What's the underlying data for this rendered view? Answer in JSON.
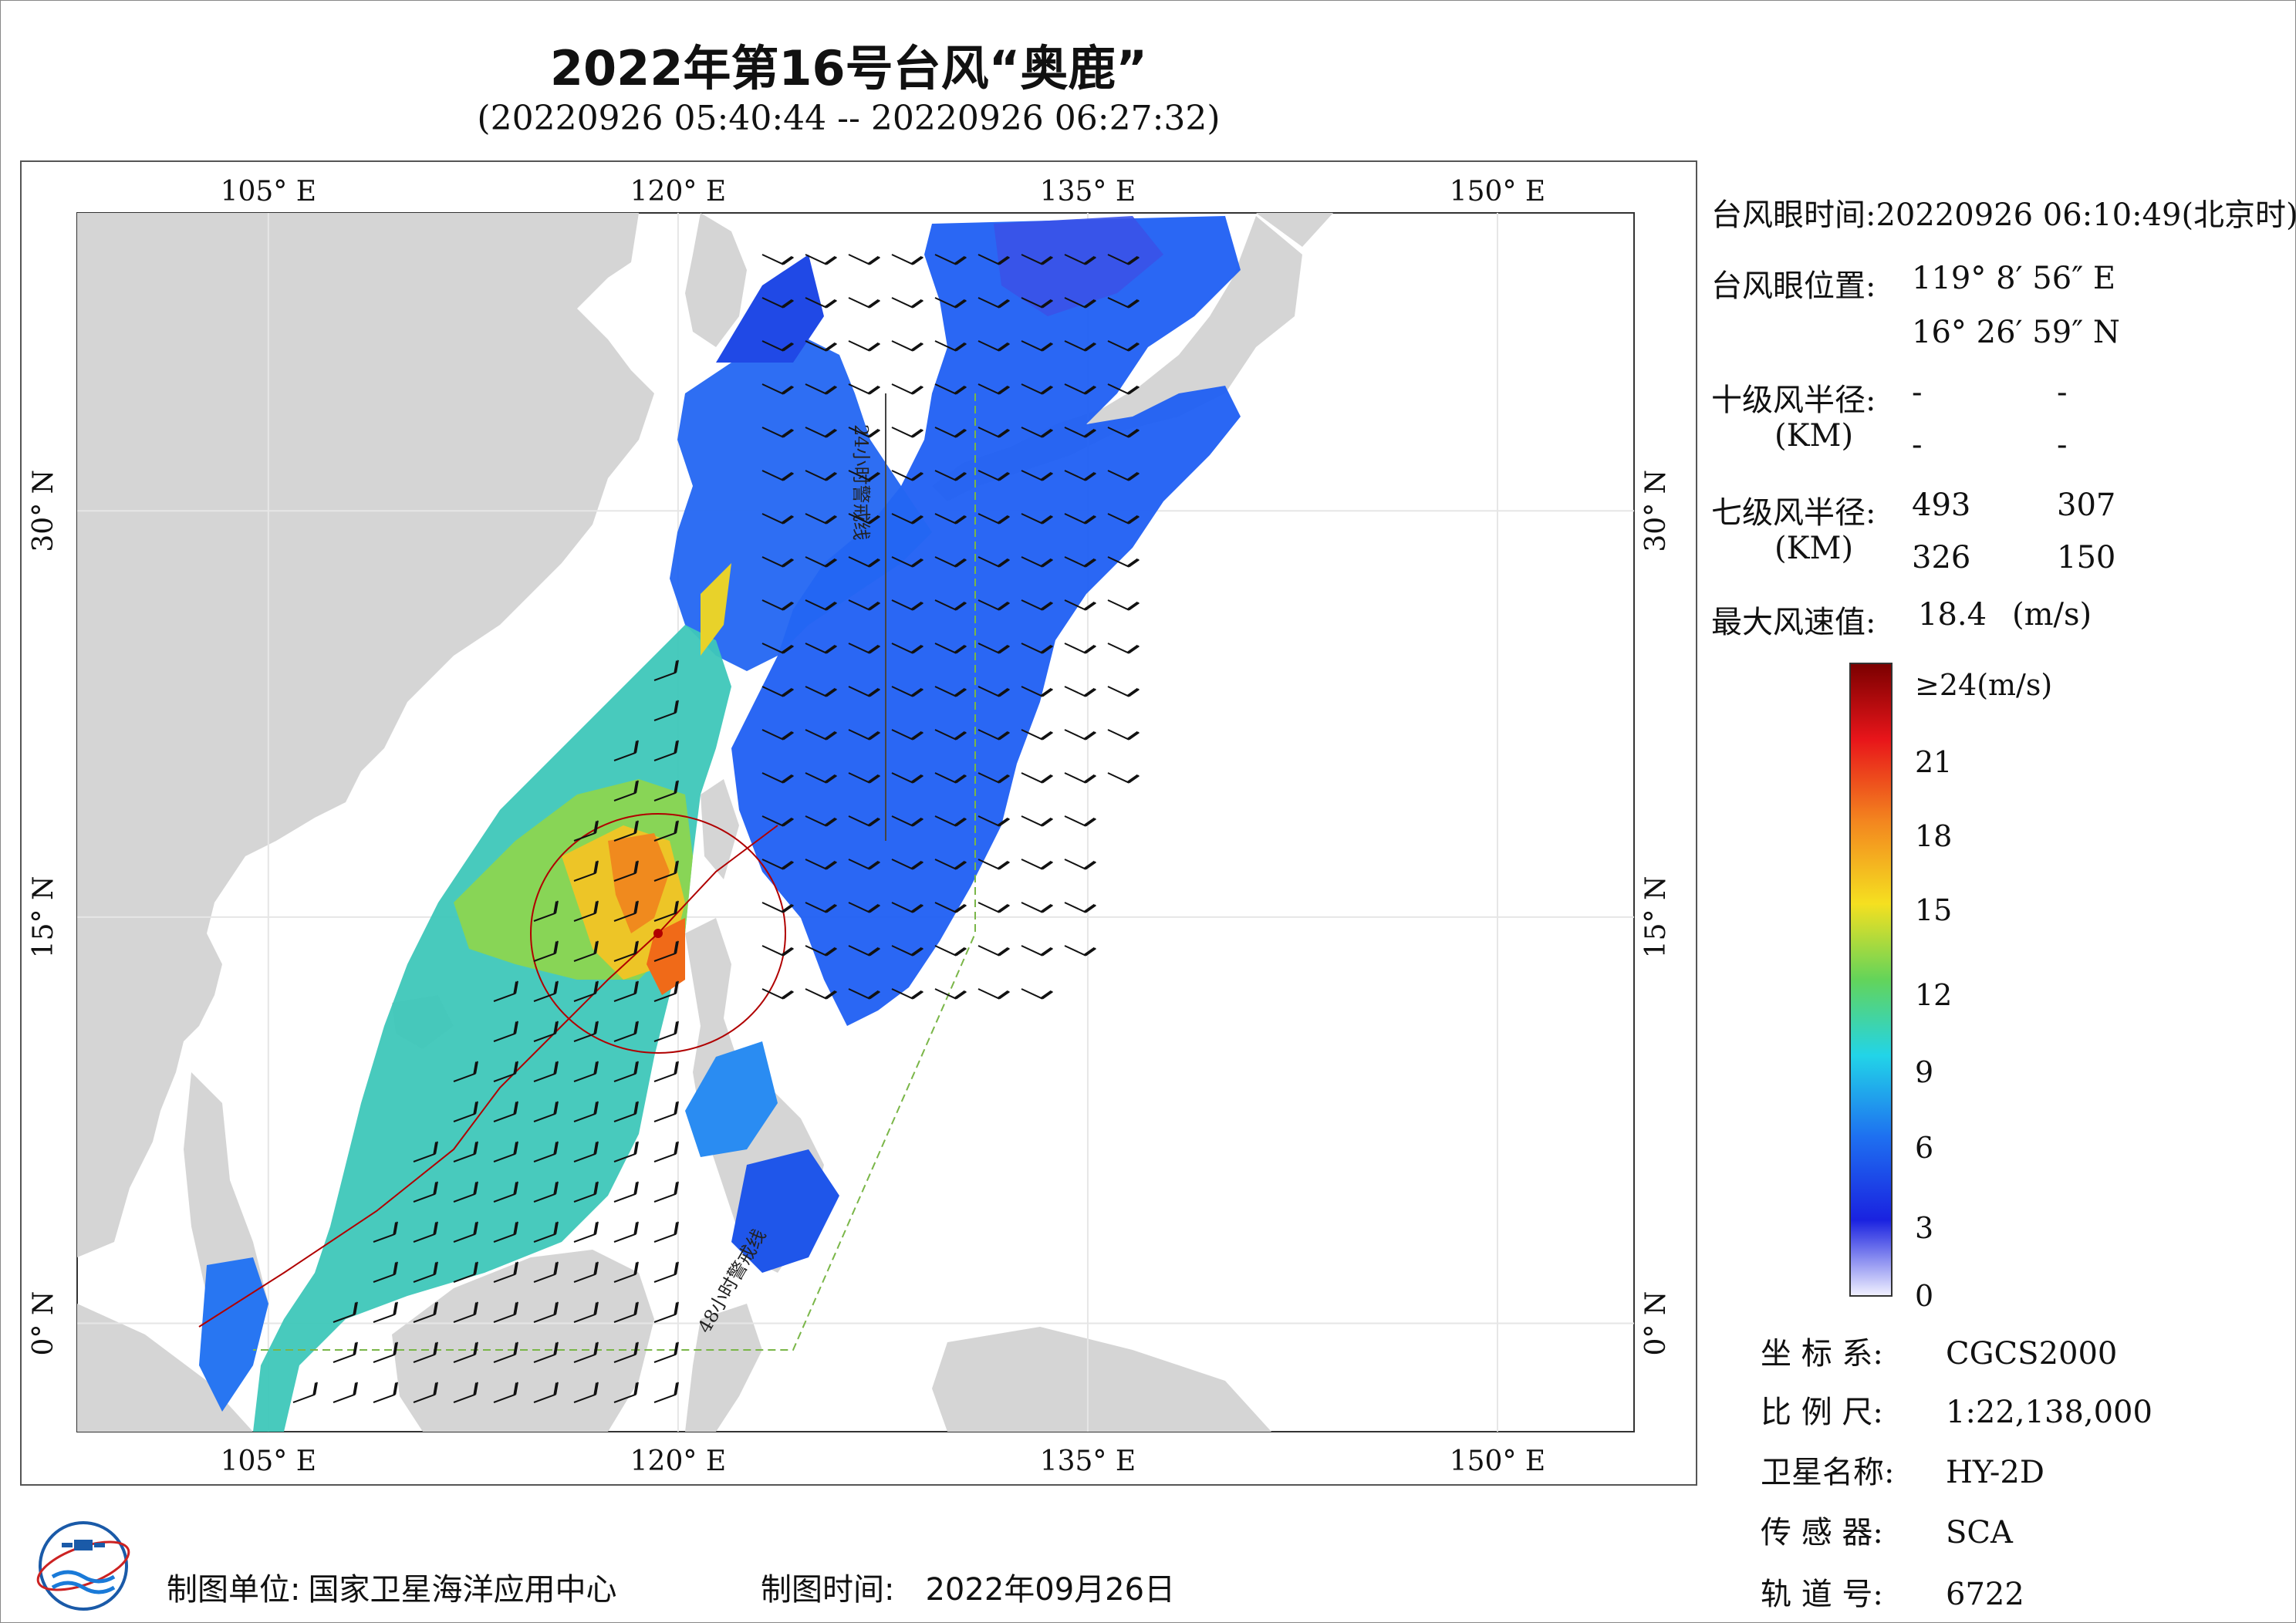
{
  "title": "2022年第16号台风“奥鹿”",
  "subtitle": "(20220926 05:40:44 -- 20220926 06:27:32)",
  "map": {
    "lon_labels": [
      "105° E",
      "120° E",
      "135° E",
      "150° E"
    ],
    "lat_labels": [
      "30° N",
      "15° N",
      "0° N"
    ],
    "lon_range": [
      98,
      155
    ],
    "lat_range": [
      -4,
      41
    ],
    "lon_ticks": [
      105,
      120,
      135,
      150
    ],
    "lat_ticks": [
      30,
      15,
      0
    ],
    "track_labels": [
      "24小时警戒线",
      "48小时警戒线"
    ],
    "colors": {
      "land": "#d5d5d5",
      "sea": "#ffffff",
      "track": "#b00000",
      "warning_line": "#7ab648"
    }
  },
  "info": {
    "eye_time_label": "台风眼时间:",
    "eye_time_value": "20220926 06:10:49(北京时)",
    "eye_pos_label": "台风眼位置:",
    "eye_lon": "119° 8′ 56″ E",
    "eye_lat": "16° 26′ 59″ N",
    "r10_label": "十级风半径:",
    "r10_unit": "(KM)",
    "r10_values": [
      "-",
      "-",
      "-",
      "-"
    ],
    "r7_label": "七级风半径:",
    "r7_unit": "(KM)",
    "r7_values": [
      "493",
      "307",
      "326",
      "150"
    ],
    "max_wind_label": "最大风速值:",
    "max_wind_value": "18.4",
    "max_wind_unit": "(m/s)"
  },
  "colorbar": {
    "labels": [
      "≥24(m/s)",
      "21",
      "18",
      "15",
      "12",
      "9",
      "6",
      "3",
      "0"
    ],
    "range": [
      0,
      24
    ]
  },
  "meta": {
    "crs_label": "坐 标 系:",
    "crs_value": "CGCS2000",
    "scale_label": "比 例 尺:",
    "scale_value": "1:22,138,000",
    "sat_label": "卫星名称:",
    "sat_value": "HY-2D",
    "sensor_label": "传 感 器:",
    "sensor_value": "SCA",
    "orbit_label": "轨 道 号:",
    "orbit_value": "6722"
  },
  "footer": {
    "org_label": "制图单位:",
    "org_value": "国家卫星海洋应用中心",
    "time_label": "制图时间:",
    "time_value": "2022年09月26日"
  }
}
